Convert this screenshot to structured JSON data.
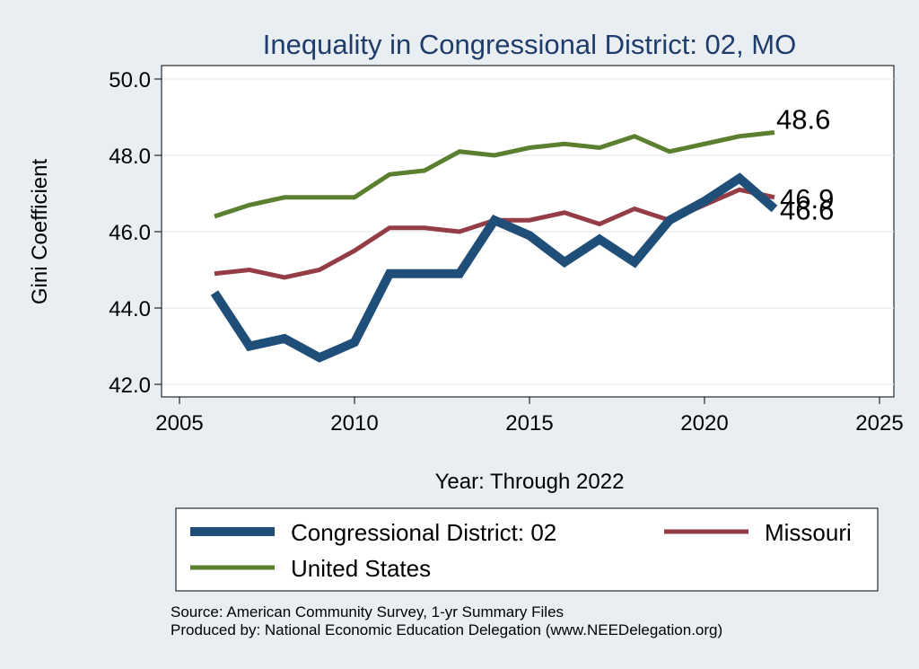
{
  "chart_data": {
    "type": "line",
    "title": "Inequality in Congressional District:  02, MO",
    "xlabel": "Year: Through 2022",
    "ylabel": "Gini Coefficient",
    "xlim": [
      2005,
      2025
    ],
    "ylim": [
      42.0,
      50.0
    ],
    "xticks": [
      "2005",
      "2010",
      "2015",
      "2020",
      "2025"
    ],
    "yticks": [
      "42.0",
      "44.0",
      "46.0",
      "48.0",
      "50.0"
    ],
    "x": [
      2006,
      2007,
      2008,
      2009,
      2010,
      2011,
      2012,
      2013,
      2014,
      2015,
      2016,
      2017,
      2018,
      2019,
      2020,
      2021,
      2022
    ],
    "series": [
      {
        "name": "Congressional District:  02",
        "color": "#1f4e79",
        "values": [
          44.4,
          43.0,
          43.2,
          42.7,
          43.1,
          44.9,
          44.9,
          44.9,
          46.3,
          45.9,
          45.2,
          45.8,
          45.2,
          46.3,
          46.8,
          47.4,
          46.6
        ],
        "end_label": "46.6"
      },
      {
        "name": "Missouri",
        "color": "#943d46",
        "values": [
          44.9,
          45.0,
          44.8,
          45.0,
          45.5,
          46.1,
          46.1,
          46.0,
          46.3,
          46.3,
          46.5,
          46.2,
          46.6,
          46.3,
          46.7,
          47.1,
          46.9
        ],
        "end_label": "46.9"
      },
      {
        "name": "United States",
        "color": "#5a7f2e",
        "values": [
          46.4,
          46.7,
          46.9,
          46.9,
          46.9,
          47.5,
          47.6,
          48.1,
          48.0,
          48.2,
          48.3,
          48.2,
          48.5,
          48.1,
          48.3,
          48.5,
          48.6
        ],
        "end_label": "48.6"
      }
    ],
    "legend_position": "bottom"
  },
  "footer": {
    "source": "Source: American Community Survey, 1-yr Summary Files",
    "produced": "Produced by: National Economic Education Delegation (www.NEEDelegation.org)"
  }
}
